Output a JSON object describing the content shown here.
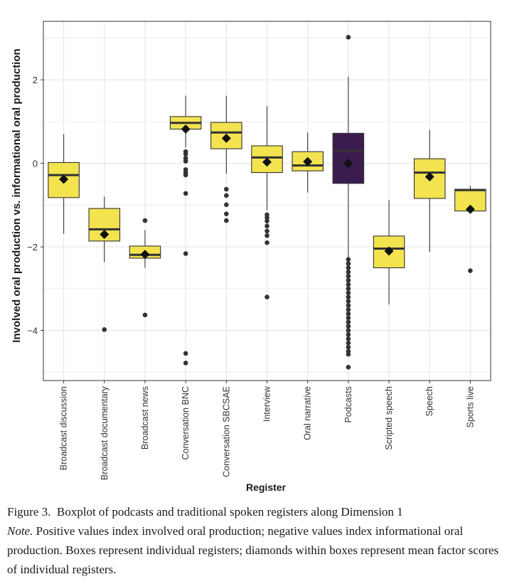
{
  "chart_data": {
    "type": "boxplot",
    "xlabel": "Register",
    "ylabel": "Involved oral production vs. informational oral production",
    "ylim": [
      -5.2,
      3.4
    ],
    "yticks": [
      -4,
      -2,
      0,
      2
    ],
    "ytick_labels": [
      "−4",
      "−2",
      "0",
      "2"
    ],
    "grid": true,
    "colors": {
      "highlight": "#3b1c4f",
      "box": "#f3e34f",
      "outline": "#333333",
      "point": "#333333",
      "median": "#333333",
      "grid": "#e6e6e6"
    },
    "boxes": [
      {
        "name": "Broadcast discussion",
        "q1": -0.82,
        "median": -0.28,
        "q3": 0.02,
        "whisker_low": -1.68,
        "whisker_high": 0.7,
        "mean": -0.38,
        "outliers": [],
        "highlight": false
      },
      {
        "name": "Broadcast documentary",
        "q1": -1.86,
        "median": -1.58,
        "q3": -1.08,
        "whisker_low": -2.36,
        "whisker_high": -0.8,
        "mean": -1.7,
        "outliers": [
          -3.98
        ],
        "highlight": false
      },
      {
        "name": "Broadcast news",
        "q1": -2.27,
        "median": -2.19,
        "q3": -1.98,
        "whisker_low": -2.5,
        "whisker_high": -1.6,
        "mean": -2.18,
        "outliers": [
          -1.37,
          -3.63
        ],
        "highlight": false
      },
      {
        "name": "Conversation BNC",
        "q1": 0.82,
        "median": 0.97,
        "q3": 1.12,
        "whisker_low": 0.38,
        "whisker_high": 1.62,
        "mean": 0.82,
        "outliers": [
          0.28,
          0.22,
          0.12,
          0.05,
          -0.15,
          -0.22,
          -0.28,
          -0.72,
          -2.16,
          -4.55,
          -4.78
        ],
        "highlight": false
      },
      {
        "name": "Conversation SBCSAE",
        "q1": 0.35,
        "median": 0.74,
        "q3": 0.98,
        "whisker_low": -0.25,
        "whisker_high": 1.62,
        "mean": 0.6,
        "outliers": [
          -0.62,
          -0.77,
          -0.99,
          -1.21,
          -1.37
        ],
        "highlight": false
      },
      {
        "name": "Interview",
        "q1": -0.22,
        "median": 0.14,
        "q3": 0.42,
        "whisker_low": -1.12,
        "whisker_high": 1.37,
        "mean": 0.03,
        "outliers": [
          -1.23,
          -1.3,
          -1.38,
          -1.5,
          -1.62,
          -1.73,
          -1.9,
          -3.2
        ],
        "highlight": false
      },
      {
        "name": "Oral narrative",
        "q1": -0.18,
        "median": -0.05,
        "q3": 0.28,
        "whisker_low": -0.7,
        "whisker_high": 0.74,
        "mean": 0.04,
        "outliers": [],
        "highlight": false
      },
      {
        "name": "Podcasts",
        "q1": -0.48,
        "median": 0.3,
        "q3": 0.72,
        "whisker_low": -2.28,
        "whisker_high": 2.08,
        "mean": 0.0,
        "outliers": [
          3.02,
          -2.3,
          -2.4,
          -2.5,
          -2.6,
          -2.7,
          -2.8,
          -2.9,
          -3.0,
          -3.1,
          -3.2,
          -3.3,
          -3.4,
          -3.5,
          -3.6,
          -3.7,
          -3.8,
          -3.9,
          -4.0,
          -4.1,
          -4.2,
          -4.3,
          -4.4,
          -4.5,
          -4.57,
          -4.88
        ],
        "highlight": true
      },
      {
        "name": "Scripted speech",
        "q1": -2.5,
        "median": -2.04,
        "q3": -1.74,
        "whisker_low": -3.38,
        "whisker_high": -0.88,
        "mean": -2.1,
        "outliers": [],
        "highlight": false
      },
      {
        "name": "Speech",
        "q1": -0.84,
        "median": -0.22,
        "q3": 0.11,
        "whisker_low": -2.12,
        "whisker_high": 0.8,
        "mean": -0.32,
        "outliers": [],
        "highlight": false
      },
      {
        "name": "Sports live",
        "q1": -1.14,
        "median": -0.64,
        "q3": -0.62,
        "whisker_low": -1.14,
        "whisker_high": -0.54,
        "mean": -1.1,
        "outliers": [
          -2.57
        ],
        "highlight": false
      }
    ]
  },
  "caption": {
    "figure_label": "Figure 3.",
    "figure_title": "Boxplot of podcasts and traditional spoken registers along Dimension 1",
    "note_label": "Note.",
    "note_text": "Positive values index involved oral production; negative values index informational oral production. Boxes represent individual registers; diamonds within boxes represent mean factor scores of individual registers."
  }
}
